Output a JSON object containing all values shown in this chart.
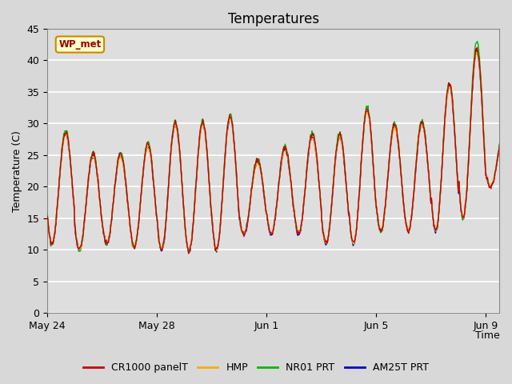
{
  "title": "Temperatures",
  "xlabel": "Time",
  "ylabel": "Temperature (C)",
  "ylim": [
    0,
    45
  ],
  "background_color": "#dedede",
  "plot_bg_color": "#dedede",
  "line_colors": {
    "CR1000_panelT": "#cc0000",
    "HMP": "#ffaa00",
    "NR01_PRT": "#00bb00",
    "AM25T_PRT": "#0000cc"
  },
  "legend_labels": [
    "CR1000 panelT",
    "HMP",
    "NR01 PRT",
    "AM25T PRT"
  ],
  "annotation_text": "WP_met",
  "annotation_color": "#990000",
  "annotation_bg": "#ffffcc",
  "annotation_border": "#cc8800",
  "grid_color": "#ffffff",
  "title_fontsize": 12,
  "axis_fontsize": 9,
  "legend_fontsize": 9
}
